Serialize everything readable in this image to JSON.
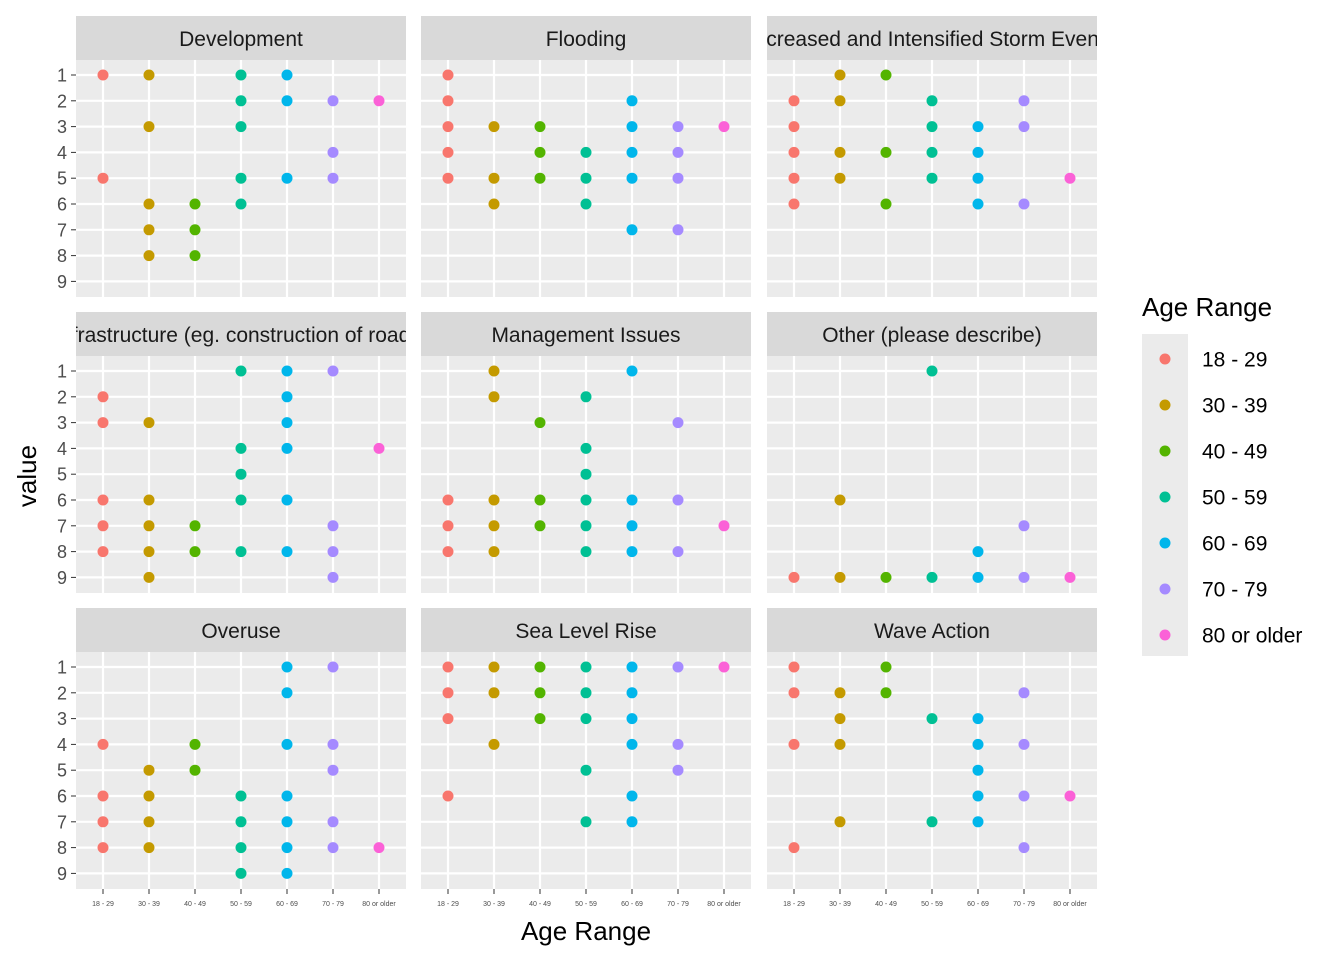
{
  "chart_data": {
    "type": "scatter",
    "xlabel": "Age Range",
    "ylabel": "value",
    "categories": [
      "18 - 29",
      "30 - 39",
      "40 - 49",
      "50 - 59",
      "60 - 69",
      "70 - 79",
      "80 or older"
    ],
    "y_ticks": [
      1,
      2,
      3,
      4,
      5,
      6,
      7,
      8,
      9
    ],
    "ylim": [
      1,
      9
    ],
    "y_reversed": true,
    "grid": true,
    "legend": {
      "title": "Age Range",
      "position": "right",
      "entries": [
        "18 - 29",
        "30 - 39",
        "40 - 49",
        "50 - 59",
        "60 - 69",
        "70 - 79",
        "80 or older"
      ]
    },
    "colors": {
      "18 - 29": "#F8766D",
      "30 - 39": "#C49A00",
      "40 - 49": "#53B400",
      "50 - 59": "#00C094",
      "60 - 69": "#00B6EB",
      "70 - 79": "#A58AFF",
      "80 or older": "#FB61D7"
    },
    "panels": [
      {
        "title": "Development",
        "points": {
          "18 - 29": [
            1,
            5
          ],
          "30 - 39": [
            1,
            3,
            6,
            7,
            8
          ],
          "40 - 49": [
            6,
            7,
            8
          ],
          "50 - 59": [
            1,
            2,
            3,
            5,
            6
          ],
          "60 - 69": [
            1,
            2,
            5
          ],
          "70 - 79": [
            2,
            4,
            5
          ],
          "80 or older": [
            2
          ]
        }
      },
      {
        "title": "Flooding",
        "points": {
          "18 - 29": [
            1,
            2,
            3,
            4,
            5
          ],
          "30 - 39": [
            3,
            5,
            6
          ],
          "40 - 49": [
            3,
            4,
            5
          ],
          "50 - 59": [
            4,
            5,
            6
          ],
          "60 - 69": [
            2,
            3,
            4,
            5,
            7
          ],
          "70 - 79": [
            3,
            4,
            5,
            7
          ],
          "80 or older": [
            3
          ]
        }
      },
      {
        "title": "Increased and Intensified Storm Events",
        "points": {
          "18 - 29": [
            2,
            3,
            4,
            5,
            6
          ],
          "30 - 39": [
            1,
            2,
            4,
            5
          ],
          "40 - 49": [
            1,
            4,
            6
          ],
          "50 - 59": [
            2,
            3,
            4,
            5
          ],
          "60 - 69": [
            3,
            4,
            5,
            6
          ],
          "70 - 79": [
            2,
            3,
            6
          ],
          "80 or older": [
            5
          ]
        }
      },
      {
        "title": "Infrastructure (eg. construction of roads)",
        "points": {
          "18 - 29": [
            2,
            3,
            6,
            7,
            8
          ],
          "30 - 39": [
            3,
            6,
            7,
            8,
            9
          ],
          "40 - 49": [
            7,
            8
          ],
          "50 - 59": [
            1,
            4,
            5,
            6,
            8
          ],
          "60 - 69": [
            1,
            2,
            3,
            4,
            6,
            8
          ],
          "70 - 79": [
            1,
            7,
            8,
            9
          ],
          "80 or older": [
            4
          ]
        }
      },
      {
        "title": "Management Issues",
        "points": {
          "18 - 29": [
            6,
            7,
            8
          ],
          "30 - 39": [
            1,
            2,
            6,
            7,
            8
          ],
          "40 - 49": [
            3,
            6,
            7
          ],
          "50 - 59": [
            2,
            4,
            5,
            6,
            7,
            8
          ],
          "60 - 69": [
            1,
            6,
            7,
            8
          ],
          "70 - 79": [
            3,
            6,
            8
          ],
          "80 or older": [
            7
          ]
        }
      },
      {
        "title": "Other (please describe)",
        "points": {
          "18 - 29": [
            9
          ],
          "30 - 39": [
            6,
            9
          ],
          "40 - 49": [
            9
          ],
          "50 - 59": [
            1,
            9
          ],
          "60 - 69": [
            8,
            9
          ],
          "70 - 79": [
            7,
            9
          ],
          "80 or older": [
            9
          ]
        }
      },
      {
        "title": "Overuse",
        "points": {
          "18 - 29": [
            4,
            6,
            7,
            8
          ],
          "30 - 39": [
            5,
            6,
            7,
            8
          ],
          "40 - 49": [
            4,
            5
          ],
          "50 - 59": [
            6,
            7,
            8,
            9
          ],
          "60 - 69": [
            1,
            2,
            4,
            6,
            7,
            8,
            9
          ],
          "70 - 79": [
            1,
            4,
            5,
            7,
            8
          ],
          "80 or older": [
            8
          ]
        }
      },
      {
        "title": "Sea Level Rise",
        "points": {
          "18 - 29": [
            1,
            2,
            3,
            6
          ],
          "30 - 39": [
            1,
            2,
            4
          ],
          "40 - 49": [
            1,
            2,
            3
          ],
          "50 - 59": [
            1,
            2,
            3,
            5,
            7
          ],
          "60 - 69": [
            1,
            2,
            3,
            4,
            6,
            7
          ],
          "70 - 79": [
            1,
            4,
            5
          ],
          "80 or older": [
            1
          ]
        }
      },
      {
        "title": "Wave Action",
        "points": {
          "18 - 29": [
            1,
            2,
            4,
            8
          ],
          "30 - 39": [
            2,
            3,
            4,
            7
          ],
          "40 - 49": [
            1,
            2
          ],
          "50 - 59": [
            3,
            7
          ],
          "60 - 69": [
            3,
            4,
            5,
            6,
            7
          ],
          "70 - 79": [
            2,
            4,
            6,
            8
          ],
          "80 or older": [
            6
          ]
        }
      }
    ]
  }
}
